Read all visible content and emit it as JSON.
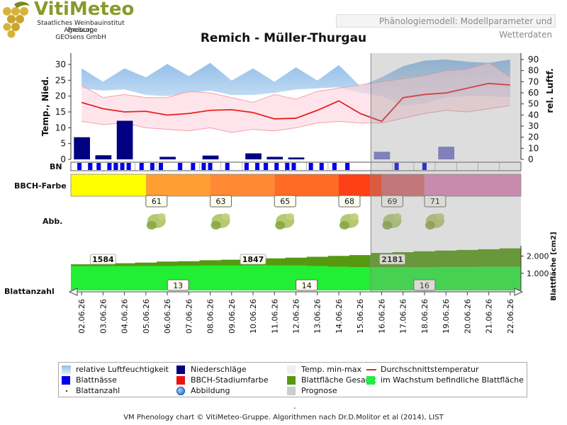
{
  "header": {
    "logo_title": "VitiMeteo",
    "logo_lines": [
      "Staatliches Weinbauinstitut Freiburg",
      "Agroscope",
      "GEOsens GmbH"
    ],
    "model_label": "Phänologiemodell: Modellparameter und Wetterdaten"
  },
  "chart_data": {
    "type": "line",
    "title": "Remich - Müller-Thurgau",
    "x": [
      "02.06.26",
      "03.06.26",
      "04.06.26",
      "05.06.26",
      "06.06.26",
      "07.06.26",
      "08.06.26",
      "09.06.26",
      "10.06.26",
      "11.06.26",
      "12.06.26",
      "13.06.26",
      "14.06.26",
      "15.06.26",
      "16.06.26",
      "17.06.26",
      "18.06.26",
      "19.06.26",
      "20.06.26",
      "21.06.26",
      "22.06.26"
    ],
    "forecast_from": "16.06.26",
    "weather": {
      "ylabel_left": "Temp., Nied.",
      "ylabel_right": "rel. Luftf.",
      "ylim_left": [
        0,
        30
      ],
      "yticks_left": [
        0,
        5,
        10,
        15,
        20,
        25,
        30
      ],
      "ylim_right": [
        0,
        90
      ],
      "yticks_right": [
        0,
        10,
        20,
        30,
        40,
        50,
        60,
        70,
        80,
        90
      ],
      "humidity_upper": [
        82,
        70,
        82,
        74,
        86,
        75,
        87,
        71,
        82,
        70,
        83,
        71,
        85,
        66,
        74,
        84,
        89,
        90,
        88,
        87,
        90
      ],
      "humidity_lower": [
        64,
        62,
        63,
        58,
        57,
        60,
        62,
        58,
        58,
        60,
        63,
        64,
        65,
        60,
        57,
        48,
        50,
        56,
        57,
        57,
        56
      ],
      "temp_max": [
        23.5,
        19.5,
        20.5,
        19.5,
        19.5,
        21.5,
        21.0,
        19.5,
        18.0,
        20.5,
        19.0,
        21.5,
        22.5,
        23.5,
        24.5,
        25.5,
        26.5,
        28.0,
        28.5,
        30.5,
        26.0
      ],
      "temp_min": [
        12.0,
        11.0,
        11.5,
        10.0,
        9.5,
        9.0,
        10.0,
        8.5,
        9.5,
        9.0,
        10.0,
        11.5,
        12.0,
        11.5,
        11.5,
        13.0,
        14.5,
        15.5,
        15.0,
        16.0,
        17.0
      ],
      "temp_avg": [
        18.0,
        16.0,
        15.0,
        15.2,
        14.0,
        14.5,
        15.5,
        15.7,
        14.8,
        12.8,
        13.0,
        15.5,
        18.5,
        14.5,
        12.0,
        19.5,
        20.5,
        21.0,
        22.5,
        24.0,
        23.5
      ],
      "precipitation": [
        7.0,
        1.3,
        12.2,
        0.0,
        0.8,
        0.0,
        1.2,
        0.0,
        1.9,
        0.8,
        0.6,
        0.0,
        0.0,
        0.0,
        2.4,
        0.0,
        0.0,
        4.0,
        0.0,
        0.0,
        0.0
      ],
      "precip_forecast_offset": 0.5
    },
    "blattnaesse": {
      "label": "BN",
      "marks": [
        0.3,
        0.8,
        1.2,
        1.7,
        2.0,
        2.3,
        2.6,
        3.2,
        3.7,
        4.1,
        5.0,
        5.6,
        6.1,
        6.4,
        7.2,
        8.1,
        8.6,
        9.0,
        9.5,
        10.0,
        10.3,
        11.1,
        11.6,
        12.2,
        12.8,
        15.1,
        16.4
      ]
    },
    "bbch": {
      "label": "BBCH-Farbe",
      "segments": [
        {
          "from": 0.0,
          "to": 3.5,
          "color": "#ffff00"
        },
        {
          "from": 3.5,
          "to": 6.5,
          "color": "#ff9f33"
        },
        {
          "from": 6.5,
          "to": 9.5,
          "color": "#ff8a33"
        },
        {
          "from": 9.5,
          "to": 12.5,
          "color": "#ff6a24"
        },
        {
          "from": 12.5,
          "to": 14.5,
          "color": "#ff3f15"
        },
        {
          "from": 14.5,
          "to": 16.5,
          "color": "#d86b6b"
        },
        {
          "from": 16.5,
          "to": 21.0,
          "color": "#df88b8"
        }
      ]
    },
    "abbildung": {
      "label": "Abb.",
      "stages": [
        {
          "pos": 3.5,
          "value": "61"
        },
        {
          "pos": 6.5,
          "value": "63"
        },
        {
          "pos": 9.5,
          "value": "65"
        },
        {
          "pos": 12.5,
          "value": "68"
        },
        {
          "pos": 14.5,
          "value": "69"
        },
        {
          "pos": 16.5,
          "value": "71"
        }
      ]
    },
    "blattflaeche": {
      "ylabel_right": "Blattfläche [cm2]",
      "ylim": [
        0,
        2600
      ],
      "yticks": [
        1000,
        2000
      ],
      "ytick_labels": [
        "1.000",
        "2.000"
      ],
      "total": [
        1520,
        1560,
        1584,
        1620,
        1680,
        1700,
        1760,
        1790,
        1847,
        1870,
        1910,
        1960,
        2010,
        2060,
        2181,
        2230,
        2280,
        2320,
        2360,
        2400,
        2450
      ],
      "growing": [
        1420,
        1420,
        1420,
        1430,
        1430,
        1440,
        1450,
        1450,
        1460,
        1460,
        1460,
        1430,
        1380,
        1360,
        1360,
        1360,
        1360,
        1370,
        1370,
        1380,
        1380
      ],
      "labels": [
        {
          "pos": 1.5,
          "value": "1584"
        },
        {
          "pos": 8.5,
          "value": "1847"
        },
        {
          "pos": 15.0,
          "value": "2181"
        }
      ]
    },
    "blattanzahl": {
      "label": "Blattanzahl",
      "labels": [
        {
          "pos": 5.0,
          "value": "13"
        },
        {
          "pos": 11.0,
          "value": "14"
        },
        {
          "pos": 16.5,
          "value": "16"
        }
      ]
    },
    "legend": [
      {
        "label": "relative Luftfeuchtigkeit",
        "kind": "gradient"
      },
      {
        "label": "Niederschläge",
        "kind": "box",
        "color": "#000080"
      },
      {
        "label": "Temp. min-max",
        "kind": "box",
        "color": "#eeeeee"
      },
      {
        "label": "Durchschnittstemperatur",
        "kind": "line",
        "color": "#ee2222"
      },
      {
        "label": "Blattnässe",
        "kind": "box",
        "color": "#0000ee"
      },
      {
        "label": "BBCH-Stadiumfarbe",
        "kind": "box",
        "color": "#ee1111"
      },
      {
        "label": "Blattfläche Gesamt",
        "kind": "box",
        "color": "#559911"
      },
      {
        "label": "im Wachstum befindliche Blattfläche",
        "kind": "box",
        "color": "#22ee44"
      },
      {
        "label": "Blattanzahl",
        "kind": "dot"
      },
      {
        "label": "Abbildung",
        "kind": "globe"
      },
      {
        "label": "Prognose",
        "kind": "box",
        "color": "#cccccc"
      }
    ]
  },
  "footer": {
    "dash": "-",
    "text": "VM Phenology chart © VitiMeteo-Gruppe. Algorithmen nach Dr.D.Molitor et al (2014), LIST"
  }
}
